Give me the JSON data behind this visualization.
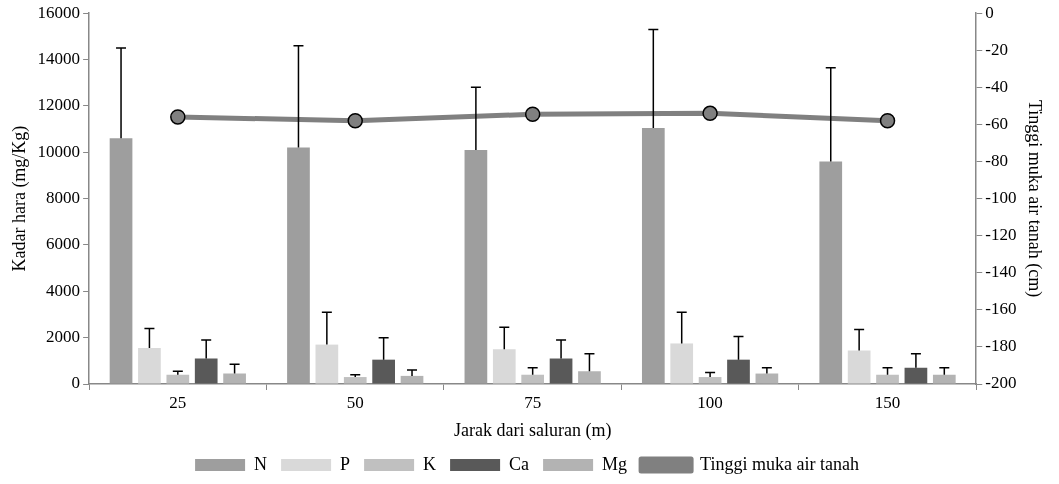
{
  "chart_data": {
    "type": "bar",
    "xlabel": "Jarak dari saluran (m)",
    "ylabel": "Kadar hara (mg/Kg)",
    "y2label": "Tinggi muka air tanah (cm)",
    "categories": [
      "25",
      "50",
      "75",
      "100",
      "150"
    ],
    "series": [
      {
        "name": "N",
        "color": "#9e9e9e",
        "values": [
          10600,
          10200,
          10100,
          11050,
          9600
        ],
        "errors": [
          [
            10600,
            14500
          ],
          [
            10200,
            14600
          ],
          [
            10100,
            12800
          ],
          [
            11050,
            15300
          ],
          [
            9600,
            13650
          ]
        ]
      },
      {
        "name": "P",
        "color": "#d9d9d9",
        "values": [
          1550,
          1700,
          1500,
          1750,
          1450
        ],
        "errors": [
          [
            1550,
            2400
          ],
          [
            1700,
            3100
          ],
          [
            1500,
            2450
          ],
          [
            1750,
            3100
          ],
          [
            1450,
            2350
          ]
        ]
      },
      {
        "name": "K",
        "color": "#c0c0c0",
        "values": [
          400,
          300,
          400,
          300,
          400
        ],
        "errors": [
          [
            400,
            550
          ],
          [
            300,
            400
          ],
          [
            400,
            700
          ],
          [
            300,
            500
          ],
          [
            400,
            700
          ]
        ]
      },
      {
        "name": "Ca",
        "color": "#595959",
        "values": [
          1100,
          1050,
          1100,
          1050,
          700
        ],
        "errors": [
          [
            1100,
            1900
          ],
          [
            1050,
            2000
          ],
          [
            1100,
            1900
          ],
          [
            1050,
            2050
          ],
          [
            700,
            1300
          ]
        ]
      },
      {
        "name": "Mg",
        "color": "#b3b3b3",
        "values": [
          450,
          350,
          550,
          450,
          400
        ],
        "errors": [
          [
            450,
            850
          ],
          [
            350,
            600
          ],
          [
            550,
            1300
          ],
          [
            450,
            700
          ],
          [
            400,
            700
          ]
        ]
      },
      {
        "name": "Tinggi muka air tanah",
        "type": "line",
        "axis": "y2",
        "color": "#808080",
        "marker": "circle",
        "values": [
          -56,
          -58,
          -54.5,
          -54,
          -58
        ]
      }
    ],
    "ylim": [
      0,
      16000
    ],
    "yticks": [
      0,
      2000,
      4000,
      6000,
      8000,
      10000,
      12000,
      14000,
      16000
    ],
    "y2lim": [
      -200,
      0
    ],
    "y2ticks": [
      -200,
      -180,
      -160,
      -140,
      -120,
      -100,
      -80,
      -60,
      -40,
      -20,
      0
    ],
    "legend": "bottom"
  }
}
